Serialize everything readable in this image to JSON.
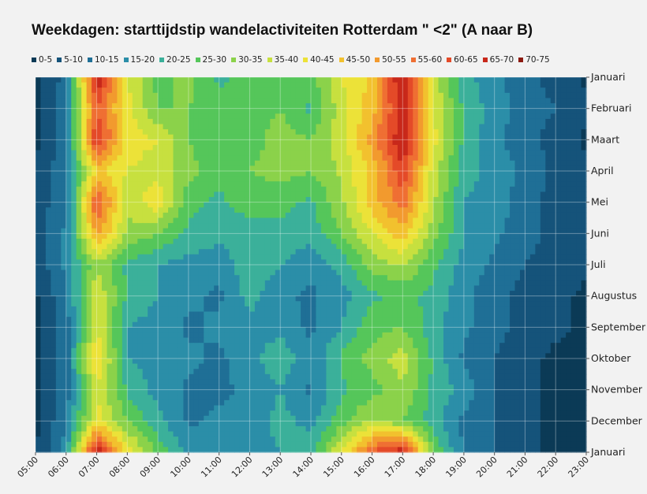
{
  "chart_data": {
    "type": "heatmap",
    "title": "Weekdagen: starttijdstip wandelactiviteiten Rotterdam \" <2\" (A naar B)",
    "xlabel": "",
    "ylabel": "",
    "x_ticks": [
      "05:00",
      "06:00",
      "07:00",
      "08:00",
      "09:00",
      "10:00",
      "11:00",
      "12:00",
      "13:00",
      "14:00",
      "15:00",
      "16:00",
      "17:00",
      "18:00",
      "19:00",
      "20:00",
      "21:00",
      "22:00",
      "23:00"
    ],
    "y_ticks": [
      "Januari",
      "Februari",
      "Maart",
      "April",
      "Mei",
      "Juni",
      "Juli",
      "Augustus",
      "September",
      "Oktober",
      "November",
      "December",
      "Januari"
    ],
    "legend": [
      {
        "label": "0-5",
        "color": "#0b3a56"
      },
      {
        "label": "5-10",
        "color": "#15537a"
      },
      {
        "label": "10-15",
        "color": "#1f6f96"
      },
      {
        "label": "15-20",
        "color": "#2b8ea8"
      },
      {
        "label": "20-25",
        "color": "#3bb09a"
      },
      {
        "label": "25-30",
        "color": "#55c65a"
      },
      {
        "label": "30-35",
        "color": "#8bd24a"
      },
      {
        "label": "35-40",
        "color": "#c7e03f"
      },
      {
        "label": "40-45",
        "color": "#ece238"
      },
      {
        "label": "45-50",
        "color": "#f2c12e"
      },
      {
        "label": "50-55",
        "color": "#f29a2e"
      },
      {
        "label": "55-60",
        "color": "#ef6f33"
      },
      {
        "label": "60-65",
        "color": "#e44a28"
      },
      {
        "label": "65-70",
        "color": "#c8281a"
      },
      {
        "label": "70-75",
        "color": "#8c1a10"
      }
    ],
    "grid": true,
    "values": [
      [
        3,
        12,
        70,
        40,
        28,
        32,
        24,
        26,
        30,
        28,
        40,
        46,
        72,
        38,
        22,
        16,
        12,
        8,
        4
      ],
      [
        4,
        14,
        60,
        42,
        30,
        30,
        26,
        28,
        30,
        24,
        38,
        48,
        68,
        40,
        24,
        18,
        12,
        10,
        6
      ],
      [
        3,
        13,
        66,
        42,
        40,
        30,
        26,
        28,
        32,
        30,
        38,
        52,
        70,
        42,
        24,
        16,
        12,
        8,
        4
      ],
      [
        6,
        14,
        46,
        40,
        38,
        32,
        26,
        30,
        32,
        30,
        36,
        46,
        64,
        38,
        22,
        18,
        14,
        8,
        6
      ],
      [
        8,
        12,
        62,
        36,
        44,
        26,
        24,
        28,
        26,
        24,
        34,
        48,
        58,
        36,
        20,
        18,
        12,
        8,
        6
      ],
      [
        8,
        16,
        52,
        34,
        30,
        24,
        22,
        22,
        24,
        22,
        30,
        40,
        48,
        32,
        20,
        16,
        12,
        8,
        6
      ],
      [
        6,
        16,
        34,
        24,
        20,
        18,
        16,
        24,
        20,
        16,
        22,
        32,
        36,
        26,
        18,
        14,
        10,
        8,
        6
      ],
      [
        4,
        14,
        40,
        24,
        20,
        16,
        14,
        22,
        16,
        14,
        18,
        24,
        26,
        24,
        16,
        12,
        8,
        6,
        4
      ],
      [
        4,
        12,
        40,
        20,
        18,
        14,
        16,
        18,
        18,
        14,
        20,
        28,
        30,
        22,
        16,
        12,
        8,
        6,
        4
      ],
      [
        4,
        12,
        46,
        20,
        18,
        16,
        14,
        18,
        24,
        16,
        26,
        32,
        38,
        24,
        14,
        10,
        6,
        4,
        4
      ],
      [
        4,
        12,
        40,
        24,
        18,
        14,
        14,
        16,
        20,
        14,
        24,
        28,
        34,
        24,
        18,
        10,
        6,
        4,
        4
      ],
      [
        4,
        14,
        42,
        30,
        22,
        14,
        16,
        16,
        22,
        18,
        28,
        36,
        30,
        22,
        14,
        10,
        6,
        4,
        4
      ],
      [
        4,
        18,
        70,
        44,
        28,
        18,
        18,
        18,
        20,
        24,
        40,
        60,
        70,
        30,
        14,
        10,
        6,
        4,
        4
      ]
    ]
  }
}
